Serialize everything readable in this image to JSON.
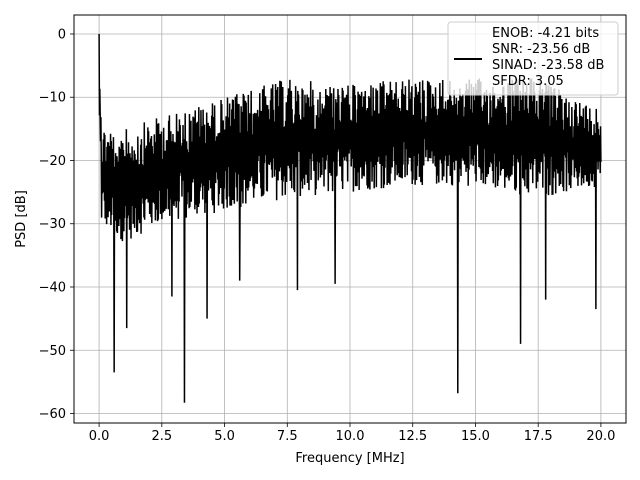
{
  "chart_data": {
    "type": "line",
    "xlabel": "Frequency [MHz]",
    "ylabel": "PSD [dB]",
    "xlim": [
      -1.0,
      21.0
    ],
    "ylim": [
      -61.5,
      3.0
    ],
    "x_ticks": [
      0.0,
      2.5,
      5.0,
      7.5,
      10.0,
      12.5,
      15.0,
      17.5,
      20.0
    ],
    "x_tick_labels": [
      "0.0",
      "2.5",
      "5.0",
      "7.5",
      "10.0",
      "12.5",
      "15.0",
      "17.5",
      "20.0"
    ],
    "y_ticks": [
      0,
      -10,
      -20,
      -30,
      -40,
      -50,
      -60
    ],
    "y_tick_labels": [
      "0",
      "−10",
      "−20",
      "−30",
      "−40",
      "−50",
      "−60"
    ],
    "grid": true,
    "legend_position": "top-right",
    "legend_lines": [
      "ENOB: -4.21 bits",
      "SNR: -23.56 dB",
      "SINAD: -23.58 dB",
      "SFDR: 3.05"
    ],
    "series_color": "#000000",
    "series": [
      {
        "description": "noise-like PSD trace, dense envelope",
        "x_range": [
          0.0,
          20.0
        ],
        "dc_peak_db": 0.0,
        "upper_envelope_db": [
          [
            0.0,
            -14
          ],
          [
            1.0,
            -15
          ],
          [
            2.5,
            -13
          ],
          [
            5.0,
            -10
          ],
          [
            7.5,
            -7
          ],
          [
            10.0,
            -8
          ],
          [
            12.5,
            -7
          ],
          [
            15.0,
            -7
          ],
          [
            17.5,
            -7
          ],
          [
            20.0,
            -12
          ]
        ],
        "lower_envelope_db": [
          [
            0.0,
            -30
          ],
          [
            1.0,
            -33
          ],
          [
            2.5,
            -30
          ],
          [
            5.0,
            -28
          ],
          [
            7.5,
            -26
          ],
          [
            10.0,
            -25
          ],
          [
            12.5,
            -24
          ],
          [
            15.0,
            -24
          ],
          [
            17.5,
            -26
          ],
          [
            20.0,
            -24
          ]
        ],
        "notches": [
          {
            "x": 0.6,
            "y": -53.5
          },
          {
            "x": 1.1,
            "y": -46.5
          },
          {
            "x": 2.9,
            "y": -41.5
          },
          {
            "x": 3.4,
            "y": -58.3
          },
          {
            "x": 4.3,
            "y": -45.0
          },
          {
            "x": 5.6,
            "y": -39.0
          },
          {
            "x": 7.9,
            "y": -40.5
          },
          {
            "x": 9.4,
            "y": -39.5
          },
          {
            "x": 14.3,
            "y": -56.8
          },
          {
            "x": 16.8,
            "y": -49.0
          },
          {
            "x": 17.8,
            "y": -42.0
          },
          {
            "x": 19.8,
            "y": -43.5
          }
        ]
      }
    ]
  }
}
